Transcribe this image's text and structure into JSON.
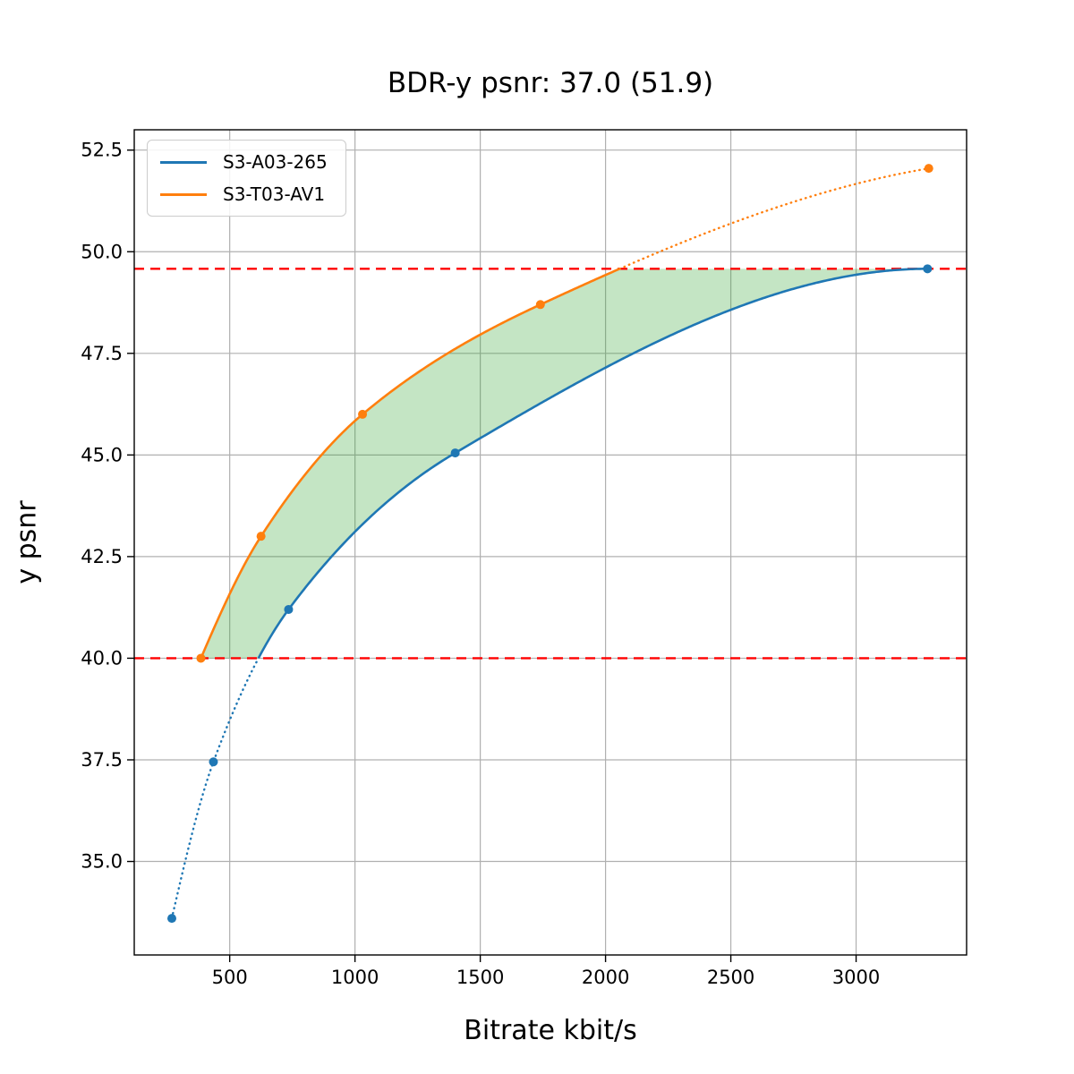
{
  "chart_data": {
    "type": "line",
    "title": "BDR-y psnr: 37.0 (51.9)",
    "xlabel": "Bitrate kbit/s",
    "ylabel": "y psnr",
    "xlim": [
      119,
      3441
    ],
    "ylim": [
      32.7,
      53.0
    ],
    "xticks": [
      500,
      1000,
      1500,
      2000,
      2500,
      3000
    ],
    "xtick_labels": [
      "500",
      "1000",
      "1500",
      "2000",
      "2500",
      "3000"
    ],
    "yticks": [
      35.0,
      37.5,
      40.0,
      42.5,
      45.0,
      47.5,
      50.0,
      52.5
    ],
    "ytick_labels": [
      "35.0",
      "37.5",
      "40.0",
      "42.5",
      "45.0",
      "47.5",
      "50.0",
      "52.5"
    ],
    "grid": true,
    "grid_color": "#b0b0b0",
    "legend_position": "upper left",
    "series": [
      {
        "name": "S3-A03-265",
        "color": "#1f77b4",
        "marker": "circle",
        "points": [
          [
            269,
            33.6
          ],
          [
            435,
            37.45
          ],
          [
            735,
            41.2
          ],
          [
            1400,
            45.05
          ],
          [
            3285,
            49.58
          ]
        ],
        "note": "dotted below lower integration bound, solid inside"
      },
      {
        "name": "S3-T03-AV1",
        "color": "#ff7f0e",
        "marker": "circle",
        "points": [
          [
            385,
            40.0
          ],
          [
            625,
            43.0
          ],
          [
            1030,
            46.0
          ],
          [
            1740,
            48.7
          ],
          [
            3290,
            52.05
          ]
        ],
        "note": "solid inside integration bounds, dotted above upper bound"
      }
    ],
    "hlines": [
      {
        "y": 40.0,
        "color": "#ff0000",
        "style": "dashed"
      },
      {
        "y": 49.58,
        "color": "#ff0000",
        "style": "dashed"
      }
    ],
    "shaded_region": {
      "color": "#2ca02c",
      "alpha": 0.28,
      "description": "area between the two curves clipped to the hline bounds",
      "y_range": [
        40.0,
        49.58
      ]
    }
  }
}
